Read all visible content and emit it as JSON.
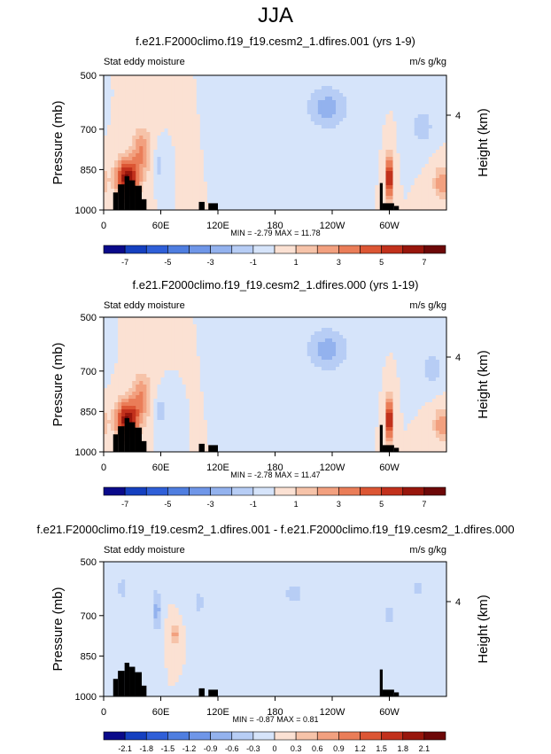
{
  "page_title": "JJA",
  "chart_data": [
    {
      "type": "heatmap",
      "title": "f.e21.F2000climo.f19_f19.cesm2_1.dfires.001 (yrs 1-9)",
      "left_label": "Stat eddy moisture",
      "right_label": "m/s g/kg",
      "ylabel": "Pressure (mb)",
      "y2label": "Height (km)",
      "y_ticks": [
        "500",
        "700",
        "850",
        "1000"
      ],
      "y2_ticks": [
        "4"
      ],
      "x_ticks": [
        "0",
        "60E",
        "120E",
        "180",
        "120W",
        "60W"
      ],
      "stats": "MIN = -2.79  MAX = 11.78",
      "min": -2.79,
      "max": 11.78,
      "colorbar_levels": [
        "-7",
        "-5",
        "-3",
        "-1",
        "1",
        "3",
        "5",
        "7"
      ],
      "contour_interval": 1,
      "features": [
        {
          "lon": 25,
          "p": 880,
          "value": 7,
          "spread_lon": 12,
          "spread_p": 70
        },
        {
          "lon": 40,
          "p": 780,
          "value": 3,
          "spread_lon": 10,
          "spread_p": 80
        },
        {
          "lon": 58,
          "p": 830,
          "value": -1.5,
          "spread_lon": 5,
          "spread_p": 60
        },
        {
          "lon": 235,
          "p": 620,
          "value": -2.5,
          "spread_lon": 22,
          "spread_p": 80
        },
        {
          "lon": 300,
          "p": 880,
          "value": 8,
          "spread_lon": 3,
          "spread_p": 80
        },
        {
          "lon": 335,
          "p": 690,
          "value": -2,
          "spread_lon": 10,
          "spread_p": 60
        },
        {
          "lon": 355,
          "p": 900,
          "value": 3,
          "spread_lon": 8,
          "spread_p": 60
        }
      ]
    },
    {
      "type": "heatmap",
      "title": "f.e21.F2000climo.f19_f19.cesm2_1.dfires.000 (yrs 1-19)",
      "left_label": "Stat eddy moisture",
      "right_label": "m/s g/kg",
      "ylabel": "Pressure (mb)",
      "y2label": "Height (km)",
      "y_ticks": [
        "500",
        "700",
        "850",
        "1000"
      ],
      "y2_ticks": [
        "4"
      ],
      "x_ticks": [
        "0",
        "60E",
        "120E",
        "180",
        "120W",
        "60W"
      ],
      "stats": "MIN = -2.78  MAX = 11.47",
      "min": -2.78,
      "max": 11.47,
      "colorbar_levels": [
        "-7",
        "-5",
        "-3",
        "-1",
        "1",
        "3",
        "5",
        "7"
      ],
      "contour_interval": 1,
      "features": [
        {
          "lon": 25,
          "p": 880,
          "value": 7,
          "spread_lon": 12,
          "spread_p": 70
        },
        {
          "lon": 40,
          "p": 790,
          "value": 3,
          "spread_lon": 10,
          "spread_p": 80
        },
        {
          "lon": 60,
          "p": 850,
          "value": -1.5,
          "spread_lon": 6,
          "spread_p": 60
        },
        {
          "lon": 235,
          "p": 620,
          "value": -2.5,
          "spread_lon": 22,
          "spread_p": 80
        },
        {
          "lon": 300,
          "p": 880,
          "value": 8,
          "spread_lon": 3,
          "spread_p": 80
        },
        {
          "lon": 345,
          "p": 690,
          "value": -2,
          "spread_lon": 10,
          "spread_p": 60
        },
        {
          "lon": 355,
          "p": 900,
          "value": 3,
          "spread_lon": 8,
          "spread_p": 60
        }
      ]
    },
    {
      "type": "heatmap",
      "title": "f.e21.F2000climo.f19_f19.cesm2_1.dfires.001 - f.e21.F2000climo.f19_f19.cesm2_1.dfires.000",
      "left_label": "Stat eddy moisture",
      "right_label": "m/s g/kg",
      "ylabel": "Pressure (mb)",
      "y2label": "Height (km)",
      "y_ticks": [
        "500",
        "700",
        "850",
        "1000"
      ],
      "y2_ticks": [
        "4"
      ],
      "x_ticks": [
        "0",
        "60E",
        "120E",
        "180",
        "120W",
        "60W"
      ],
      "stats": "MIN = -0.87  MAX =  0.81",
      "min": -0.87,
      "max": 0.81,
      "colorbar_levels": [
        "-2.1",
        "-1.8",
        "-1.5",
        "-1.2",
        "-0.9",
        "-0.6",
        "-0.3",
        "0",
        "0.3",
        "0.6",
        "0.9",
        "1.2",
        "1.5",
        "1.8",
        "2.1"
      ],
      "contour_interval": 0.3,
      "features": [
        {
          "lon": 20,
          "p": 600,
          "value": -0.4,
          "spread_lon": 8,
          "spread_p": 60
        },
        {
          "lon": 56,
          "p": 680,
          "value": -0.8,
          "spread_lon": 4,
          "spread_p": 80
        },
        {
          "lon": 75,
          "p": 770,
          "value": 0.7,
          "spread_lon": 5,
          "spread_p": 40
        },
        {
          "lon": 100,
          "p": 650,
          "value": -0.35,
          "spread_lon": 10,
          "spread_p": 80
        },
        {
          "lon": 200,
          "p": 620,
          "value": -0.35,
          "spread_lon": 20,
          "spread_p": 80
        },
        {
          "lon": 300,
          "p": 700,
          "value": -0.4,
          "spread_lon": 4,
          "spread_p": 100
        },
        {
          "lon": 330,
          "p": 600,
          "value": -0.35,
          "spread_lon": 10,
          "spread_p": 60
        }
      ]
    }
  ],
  "colorbar_colors": [
    "#0a0a8a",
    "#1540c0",
    "#2f5fd8",
    "#4f7ee0",
    "#6f96e8",
    "#93b2ee",
    "#b7cdf5",
    "#d6e4fa",
    "#fbe1d3",
    "#f6c3a9",
    "#f2a07f",
    "#ea7d58",
    "#dc5634",
    "#c2311c",
    "#98160c",
    "#6d0808"
  ]
}
